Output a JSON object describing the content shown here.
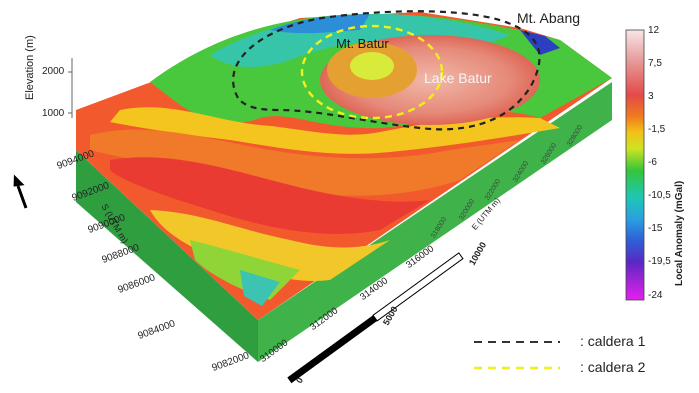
{
  "labels": {
    "mt_abang": "Mt. Abang",
    "mt_batur": "Mt. Batur",
    "lake_batur": "Lake Batur"
  },
  "axes": {
    "elevation_label": "Elevation (m)",
    "elevation_ticks": [
      "2000",
      "1000"
    ],
    "northing_label": "S (UTM m)",
    "northing_ticks": [
      "9094000",
      "9092000",
      "9090000",
      "9088000",
      "9086000",
      "9084000",
      "9082000"
    ],
    "easting_label": "E (UTM m)",
    "easting_ticks_front": [
      "310000",
      "312000",
      "314000",
      "316000"
    ],
    "easting_ticks_back": [
      "318000",
      "320000",
      "322000",
      "324000",
      "326000",
      "328000"
    ]
  },
  "scale_bar": {
    "ticks": [
      "0",
      "5000",
      "10000"
    ]
  },
  "colorbar": {
    "title": "Local Anomaly (mGal)",
    "ticks": [
      "12",
      "7,5",
      "3",
      "-1,5",
      "-6",
      "-10,5",
      "-15",
      "-19,5",
      "-24"
    ],
    "colors": [
      "#f7e6e6",
      "#e79696",
      "#e34a4a",
      "#f07a1f",
      "#f2c21a",
      "#cde321",
      "#35c53b",
      "#1ec7b4",
      "#2aa0e0",
      "#2e5fd6",
      "#5a28c4",
      "#a324d6",
      "#e41ff0"
    ]
  },
  "legend": [
    {
      "symbol": "--------",
      "label": ": caldera 1",
      "color": "#333333"
    },
    {
      "symbol": "--------",
      "label": ": caldera 2",
      "color": "#f2ef1a"
    }
  ]
}
